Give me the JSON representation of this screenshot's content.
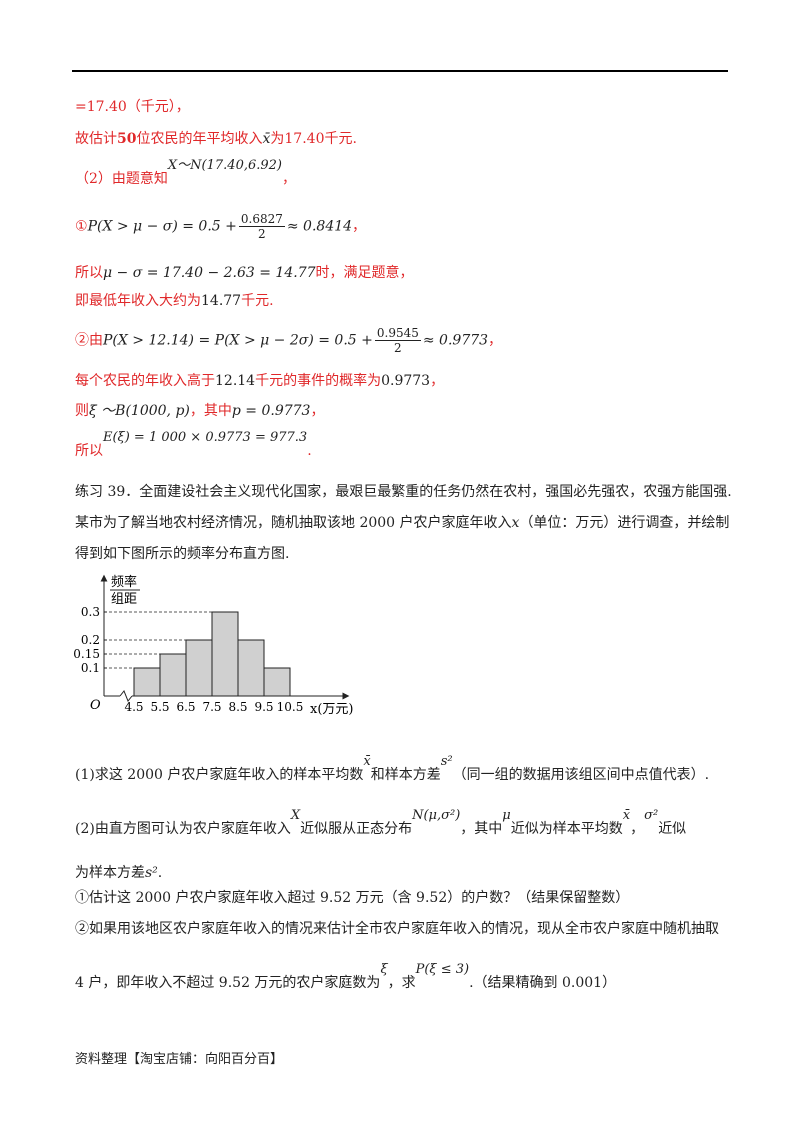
{
  "lines": {
    "l1": "=17.40（千元），",
    "l2a": "故估计",
    "l2b": "50",
    "l2c": "位农民的年平均收入",
    "l2d": "x̄",
    "l2e": "为",
    "l2f": "17.40",
    "l2g": "千元.",
    "l3a": "（2）由题意知",
    "l3b": "X～N(17.40,6.92)",
    "l3c": "，",
    "l4a": "①",
    "l4b": "P(X > μ − σ) = 0.5 +",
    "l4num": "0.6827",
    "l4den": "2",
    "l4c": "≈ 0.8414",
    "l4d": "，",
    "l5a": "所以",
    "l5b": "μ − σ = 17.40 − 2.63 = 14.77",
    "l5c": "时，满足题意，",
    "l6a": "即最低年收入大约为",
    "l6b": "14.77",
    "l6c": "千元.",
    "l7a": "②由",
    "l7b": "P(X > 12.14) = P(X > μ − 2σ) = 0.5 +",
    "l7num": "0.9545",
    "l7den": "2",
    "l7c": "≈ 0.9773",
    "l7d": "，",
    "l8a": "每个农民的年收入高于",
    "l8b": "12.14",
    "l8c": "千元的事件的概率为",
    "l8d": "0.9773",
    "l8e": "，",
    "l9a": "则",
    "l9b": "ξ ～B(1000, p)",
    "l9c": "，其中",
    "l9d": "p = 0.9773",
    "l9e": "，",
    "l10a": "所以",
    "l10b": "E(ξ) = 1 000 × 0.9773 = 977.3",
    "l10c": ".",
    "p1": "练习 39．全面建设社会主义现代化国家，最艰巨最繁重的任务仍然在农村，强国必先强农，农强方能国强.",
    "p2a": "某市为了解当地农村经济情况，随机抽取该地 2000 户农户家庭年收入",
    "p2b": "x",
    "p2c": "（单位：万元）进行调查，并绘制",
    "p3": "得到如下图所示的频率分布直方图.",
    "q1a": "(1)求这 2000 户农户家庭年收入的样本平均数",
    "q1b": "x̄",
    "q1c": "和样本方差",
    "q1d": "s²",
    "q1e": "（同一组的数据用该组区间中点值代表）.",
    "q2a": "(2)由直方图可认为农户家庭年收入",
    "q2b": "X",
    "q2c": "近似服从正态分布",
    "q2d": "N(μ,σ²)",
    "q2e": "，其中",
    "q2f": "μ",
    "q2g": "近似为样本平均数",
    "q2h": "x̄",
    "q2i": "，",
    "q2j": "σ²",
    "q2k": "近似",
    "q3a": "为样本方差",
    "q3b": "s²",
    "q3c": ".",
    "q4": "①估计这 2000 户农户家庭年收入超过 9.52 万元（含 9.52）的户数？（结果保留整数）",
    "q5": "②如果用该地区农户家庭年收入的情况来估计全市农户家庭年收入的情况，现从全市农户家庭中随机抽取",
    "q6a": "4 户，即年收入不超过 9.52 万元的农户家庭数为",
    "q6b": "ξ",
    "q6c": "，求",
    "q6d": "P(ξ ≤ 3)",
    "q6e": ".（结果精确到 0.001）"
  },
  "footer": "资料整理【淘宝店铺：向阳百分百】",
  "chart_data": {
    "type": "bar",
    "ylabel_num": "频率",
    "ylabel_den": "组距",
    "xlabel": "x(万元)",
    "origin_label": "O",
    "edges": [
      4.5,
      5.5,
      6.5,
      7.5,
      8.5,
      9.5,
      10.5
    ],
    "edge_labels": [
      "4.5",
      "5.5",
      "6.5",
      "7.5",
      "8.5",
      "9.5",
      "10.5"
    ],
    "values": [
      0.1,
      0.15,
      0.2,
      0.3,
      0.2,
      0.1
    ],
    "yticks": [
      0.1,
      0.15,
      0.2,
      0.3
    ],
    "ytick_labels": [
      "0.1",
      "0.15",
      "0.2",
      "0.3"
    ],
    "bar_color": "#d0d0d0"
  }
}
